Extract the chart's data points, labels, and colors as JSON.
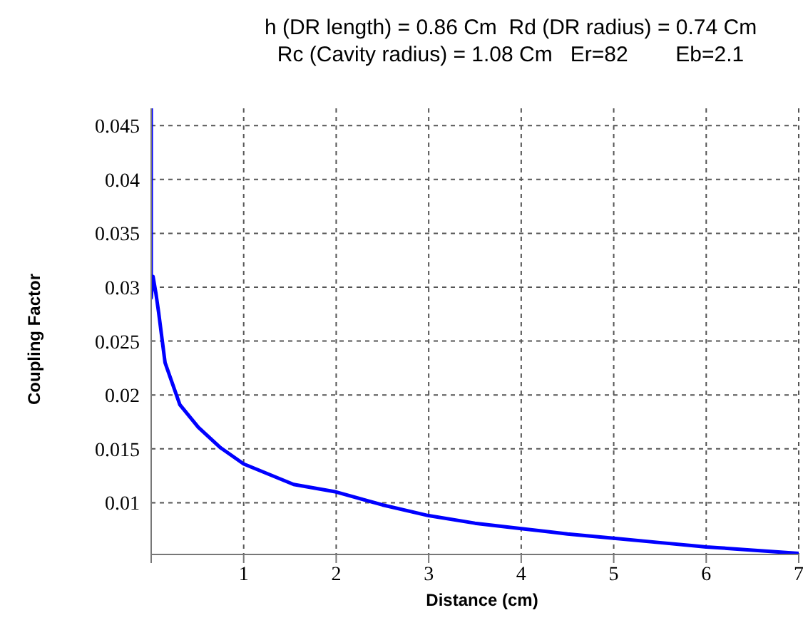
{
  "chart_data": {
    "type": "line",
    "title": "h (DR length) = 0.86 Cm  Rd (DR radius) = 0.74 Cm",
    "subtitle": "Rc (Cavity radius) = 1.08 Cm   Er=82        Eb=2.1",
    "xlabel": "Distance (cm)",
    "ylabel": "Coupling Factor",
    "x": [
      0,
      0,
      0.02,
      0.05,
      0.08,
      0.15,
      0.31,
      0.51,
      0.75,
      1,
      1.54,
      2,
      2.5,
      3,
      3.5,
      4,
      4.5,
      5,
      5.5,
      6,
      6.5,
      7
    ],
    "series": [
      {
        "color": "#0000ff",
        "values": [
          0.0466,
          0.029,
          0.031,
          0.0295,
          0.0277,
          0.023,
          0.0191,
          0.017,
          0.0151,
          0.0136,
          0.0117,
          0.011,
          0.0098,
          0.0088,
          0.0081,
          0.0076,
          0.0071,
          0.0067,
          0.0063,
          0.0059,
          0.0056,
          0.0053
        ]
      }
    ],
    "xlim": [
      0,
      7
    ],
    "xticks": [
      {
        "value": 0,
        "label": null
      },
      1,
      2,
      3,
      4,
      5,
      6,
      7
    ],
    "ylim": [
      0.0052,
      0.0466
    ],
    "yticks": [
      0.01,
      0.015,
      0.02,
      0.025,
      0.03,
      0.035,
      0.04,
      0.045
    ],
    "grid": true,
    "marker": "none",
    "line_style": "solid"
  }
}
